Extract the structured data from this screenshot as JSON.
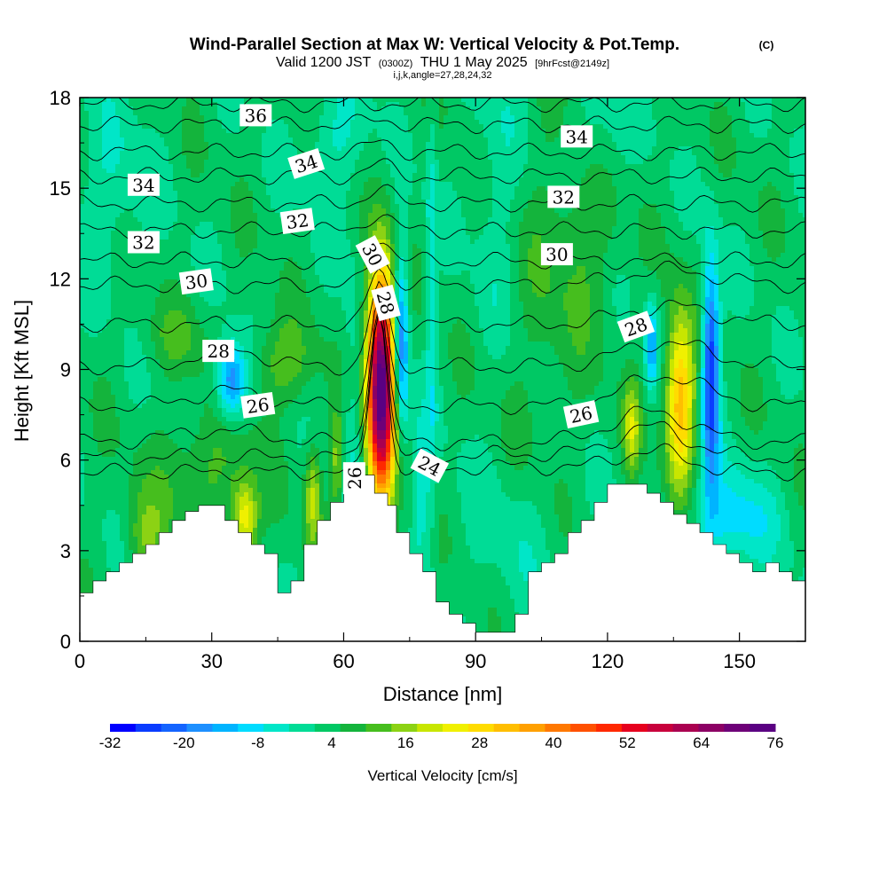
{
  "chart_data": {
    "type": "heatmap",
    "title": "Wind-Parallel Section at Max W: Vertical Velocity & Pot.Temp.",
    "title_mark": "(C)",
    "subtitle_valid": "Valid 1200 JST",
    "subtitle_utc": "(0300Z)",
    "subtitle_date": "THU 1 May 2025",
    "subtitle_fcst": "[9hrFcst@2149z]",
    "subtitle_index": "i,j,k,angle=27,28,24,32",
    "xlabel": "Distance [nm]",
    "ylabel": "Height [Kft MSL]",
    "xlim": [
      0,
      165
    ],
    "ylim": [
      0,
      18
    ],
    "x_ticks": [
      0,
      30,
      60,
      90,
      120,
      150
    ],
    "y_ticks": [
      0,
      3,
      6,
      9,
      12,
      15,
      18
    ],
    "colorbar": {
      "label": "Vertical Velocity [cm/s]",
      "min": -32,
      "max": 76,
      "tick_labels": [
        "-32",
        "-20",
        "-8",
        "4",
        "16",
        "28",
        "40",
        "52",
        "64",
        "76"
      ],
      "colors": [
        "#0000ff",
        "#0a3cff",
        "#1464ff",
        "#1e90ff",
        "#00b4ff",
        "#00dcff",
        "#00e6c8",
        "#00dc96",
        "#00c864",
        "#14b43c",
        "#46be1e",
        "#8cd214",
        "#c8e600",
        "#f0f000",
        "#ffdc00",
        "#ffbe00",
        "#ffa000",
        "#ff7800",
        "#ff5000",
        "#ff2800",
        "#e6001e",
        "#c8003c",
        "#aa0050",
        "#8c0064",
        "#6e0078",
        "#5a0082"
      ]
    },
    "terrain": [
      [
        0,
        1.6
      ],
      [
        3,
        1.6
      ],
      [
        3,
        2.0
      ],
      [
        6,
        2.0
      ],
      [
        6,
        2.3
      ],
      [
        9,
        2.3
      ],
      [
        9,
        2.6
      ],
      [
        12,
        2.6
      ],
      [
        12,
        2.9
      ],
      [
        15,
        2.9
      ],
      [
        15,
        3.2
      ],
      [
        18,
        3.2
      ],
      [
        18,
        3.6
      ],
      [
        21,
        3.6
      ],
      [
        21,
        4.0
      ],
      [
        24,
        4.0
      ],
      [
        24,
        4.3
      ],
      [
        27,
        4.3
      ],
      [
        27,
        4.5
      ],
      [
        33,
        4.5
      ],
      [
        33,
        4.0
      ],
      [
        36,
        4.0
      ],
      [
        36,
        3.6
      ],
      [
        39,
        3.6
      ],
      [
        39,
        3.2
      ],
      [
        42,
        3.2
      ],
      [
        42,
        2.9
      ],
      [
        45,
        2.9
      ],
      [
        45,
        1.6
      ],
      [
        48,
        1.6
      ],
      [
        48,
        2.0
      ],
      [
        51,
        2.0
      ],
      [
        51,
        3.2
      ],
      [
        54,
        3.2
      ],
      [
        54,
        4.0
      ],
      [
        57,
        4.0
      ],
      [
        57,
        4.6
      ],
      [
        60,
        4.6
      ],
      [
        60,
        5.5
      ],
      [
        67,
        5.5
      ],
      [
        67,
        4.9
      ],
      [
        70,
        4.9
      ],
      [
        70,
        4.5
      ],
      [
        72,
        4.5
      ],
      [
        72,
        3.6
      ],
      [
        75,
        3.6
      ],
      [
        75,
        2.9
      ],
      [
        78,
        2.9
      ],
      [
        78,
        2.3
      ],
      [
        81,
        2.3
      ],
      [
        81,
        1.3
      ],
      [
        84,
        1.3
      ],
      [
        84,
        0.9
      ],
      [
        87,
        0.9
      ],
      [
        87,
        0.6
      ],
      [
        90,
        0.6
      ],
      [
        90,
        0.3
      ],
      [
        99,
        0.3
      ],
      [
        99,
        0.9
      ],
      [
        102,
        0.9
      ],
      [
        102,
        2.3
      ],
      [
        105,
        2.3
      ],
      [
        105,
        2.6
      ],
      [
        108,
        2.6
      ],
      [
        108,
        2.9
      ],
      [
        111,
        2.9
      ],
      [
        111,
        3.6
      ],
      [
        114,
        3.6
      ],
      [
        114,
        4.0
      ],
      [
        117,
        4.0
      ],
      [
        117,
        4.6
      ],
      [
        120,
        4.6
      ],
      [
        120,
        5.2
      ],
      [
        129,
        5.2
      ],
      [
        129,
        4.9
      ],
      [
        132,
        4.9
      ],
      [
        132,
        4.6
      ],
      [
        135,
        4.6
      ],
      [
        135,
        4.2
      ],
      [
        138,
        4.2
      ],
      [
        138,
        3.9
      ],
      [
        141,
        3.9
      ],
      [
        141,
        3.6
      ],
      [
        144,
        3.6
      ],
      [
        144,
        3.2
      ],
      [
        147,
        3.2
      ],
      [
        147,
        2.9
      ],
      [
        150,
        2.9
      ],
      [
        150,
        2.6
      ],
      [
        153,
        2.6
      ],
      [
        153,
        2.3
      ],
      [
        156,
        2.3
      ],
      [
        156,
        2.6
      ],
      [
        159,
        2.6
      ],
      [
        159,
        2.3
      ],
      [
        162,
        2.3
      ],
      [
        162,
        2.0
      ],
      [
        165,
        2.0
      ]
    ],
    "w_features": [
      {
        "x": 68.5,
        "z": 8.5,
        "sx": 2.2,
        "sz": 2.6,
        "w": 76
      },
      {
        "x": 73.0,
        "z": 9.8,
        "sx": 1.2,
        "sz": 2.2,
        "w": -26
      },
      {
        "x": 136.5,
        "z": 8.0,
        "sx": 2.3,
        "sz": 2.0,
        "w": 32
      },
      {
        "x": 143.5,
        "z": 9.0,
        "sx": 1.4,
        "sz": 2.5,
        "w": -32
      },
      {
        "x": 130.0,
        "z": 9.8,
        "sx": 1.0,
        "sz": 1.0,
        "w": -18
      },
      {
        "x": 34.5,
        "z": 8.6,
        "sx": 2.4,
        "sz": 0.9,
        "w": -24
      },
      {
        "x": 37.5,
        "z": 4.0,
        "sx": 2.0,
        "sz": 0.9,
        "w": 22
      },
      {
        "x": 53.0,
        "z": 4.8,
        "sx": 1.3,
        "sz": 1.2,
        "w": 16
      },
      {
        "x": 58.5,
        "z": 6.0,
        "sx": 1.0,
        "sz": 1.2,
        "w": 14
      },
      {
        "x": 125.5,
        "z": 7.0,
        "sx": 1.3,
        "sz": 1.1,
        "w": 16
      },
      {
        "x": 80.0,
        "z": 11.5,
        "sx": 0.9,
        "sz": 6.0,
        "w": -8
      },
      {
        "x": 77.5,
        "z": 5.0,
        "sx": 1.2,
        "sz": 1.6,
        "w": -10
      },
      {
        "x": 100.0,
        "z": 3.5,
        "sx": 10.0,
        "sz": 2.0,
        "w": -4
      },
      {
        "x": 148.0,
        "z": 4.0,
        "sx": 7.0,
        "sz": 1.2,
        "w": -12
      },
      {
        "x": 58.0,
        "z": 16.5,
        "sx": 5.0,
        "sz": 1.5,
        "w": -7
      },
      {
        "x": 95.0,
        "z": 15.0,
        "sx": 4.0,
        "sz": 4.0,
        "w": -6
      },
      {
        "x": 7.0,
        "z": 15.0,
        "sx": 6.0,
        "sz": 2.0,
        "w": -6
      },
      {
        "x": 118.0,
        "z": 16.8,
        "sx": 5.0,
        "sz": 1.4,
        "w": -6
      },
      {
        "x": 46.0,
        "z": 9.2,
        "sx": 5.0,
        "sz": 1.0,
        "w": 10
      },
      {
        "x": 22.0,
        "z": 10.0,
        "sx": 5.0,
        "sz": 0.8,
        "w": 6
      },
      {
        "x": 62.0,
        "z": 7.0,
        "sx": 1.8,
        "sz": 3.5,
        "w": -6
      },
      {
        "x": 28.0,
        "z": 5.5,
        "sx": 8.0,
        "sz": 1.5,
        "w": 8
      },
      {
        "x": 15.0,
        "z": 3.4,
        "sx": 3.0,
        "sz": 1.0,
        "w": 10
      },
      {
        "x": 105.0,
        "z": 11.0,
        "sx": 8.0,
        "sz": 5.0,
        "w": 4
      },
      {
        "x": 115.0,
        "z": 13.5,
        "sx": 5.0,
        "sz": 2.0,
        "w": 6
      }
    ],
    "isentropes": [
      {
        "theta": 24,
        "base": 5.6,
        "lift": [
          [
            68,
            5.5,
            1.8
          ],
          [
            98,
            0.2,
            14
          ],
          [
            130,
            0.7,
            8
          ]
        ]
      },
      {
        "theta": 25,
        "base": 6.1,
        "lift": [
          [
            68,
            5.0,
            1.9
          ],
          [
            98,
            0.1,
            14
          ],
          [
            130,
            1.0,
            8
          ]
        ]
      },
      {
        "theta": 26,
        "base": 6.6,
        "lift": [
          [
            68,
            4.6,
            2.0
          ],
          [
            32,
            0.4,
            10
          ],
          [
            130,
            1.0,
            9
          ]
        ]
      },
      {
        "theta": 27,
        "base": 7.8,
        "lift": [
          [
            68,
            3.6,
            2.0
          ],
          [
            34,
            0.5,
            8
          ],
          [
            133,
            1.0,
            9
          ]
        ]
      },
      {
        "theta": 28,
        "base": 9.1,
        "lift": [
          [
            68,
            2.7,
            2.1
          ],
          [
            34,
            0.6,
            7
          ],
          [
            133,
            0.8,
            10
          ]
        ]
      },
      {
        "theta": 29,
        "base": 10.5,
        "lift": [
          [
            68,
            1.8,
            2.2
          ],
          [
            134,
            0.6,
            10
          ]
        ]
      },
      {
        "theta": 30,
        "base": 11.8,
        "lift": [
          [
            68,
            1.0,
            2.3
          ],
          [
            134,
            0.5,
            10
          ]
        ]
      },
      {
        "theta": 31,
        "base": 12.6,
        "lift": [
          [
            68,
            0.8,
            2.4
          ]
        ]
      },
      {
        "theta": 32,
        "base": 13.6,
        "lift": [
          [
            68,
            0.6,
            2.5
          ]
        ]
      },
      {
        "theta": 33,
        "base": 14.5,
        "lift": [
          [
            68,
            0.5,
            2.6
          ]
        ]
      },
      {
        "theta": 34,
        "base": 15.4,
        "lift": [
          [
            68,
            0.4,
            2.7
          ]
        ]
      },
      {
        "theta": 35,
        "base": 16.2,
        "lift": [
          [
            68,
            0.3,
            2.8
          ]
        ]
      },
      {
        "theta": 36,
        "base": 17.1,
        "lift": [
          [
            68,
            0.2,
            3.0
          ]
        ]
      },
      {
        "theta": 37,
        "base": 17.8,
        "lift": []
      }
    ],
    "contour_labels": [
      {
        "text": "36",
        "x": 40,
        "y": 17.4,
        "rot": 0
      },
      {
        "text": "34",
        "x": 51.5,
        "y": 15.8,
        "rot": -18
      },
      {
        "text": "34",
        "x": 14.5,
        "y": 15.1,
        "rot": 0
      },
      {
        "text": "34",
        "x": 113,
        "y": 16.7,
        "rot": 0
      },
      {
        "text": "32",
        "x": 49.5,
        "y": 13.9,
        "rot": -8
      },
      {
        "text": "32",
        "x": 14.5,
        "y": 13.2,
        "rot": 0
      },
      {
        "text": "32",
        "x": 110,
        "y": 14.7,
        "rot": 0
      },
      {
        "text": "30",
        "x": 26.5,
        "y": 11.9,
        "rot": -8
      },
      {
        "text": "30",
        "x": 66.5,
        "y": 12.8,
        "rot": 62
      },
      {
        "text": "30",
        "x": 108.5,
        "y": 12.8,
        "rot": 0
      },
      {
        "text": "28",
        "x": 31.5,
        "y": 9.6,
        "rot": 0
      },
      {
        "text": "28",
        "x": 69.5,
        "y": 11.2,
        "rot": 75
      },
      {
        "text": "28",
        "x": 126.5,
        "y": 10.4,
        "rot": -20
      },
      {
        "text": "26",
        "x": 40.5,
        "y": 7.8,
        "rot": -8
      },
      {
        "text": "26",
        "x": 114,
        "y": 7.5,
        "rot": -12
      },
      {
        "text": "26",
        "x": 62.5,
        "y": 5.4,
        "rot": -90
      },
      {
        "text": "24",
        "x": 79.5,
        "y": 5.8,
        "rot": 28
      }
    ]
  }
}
